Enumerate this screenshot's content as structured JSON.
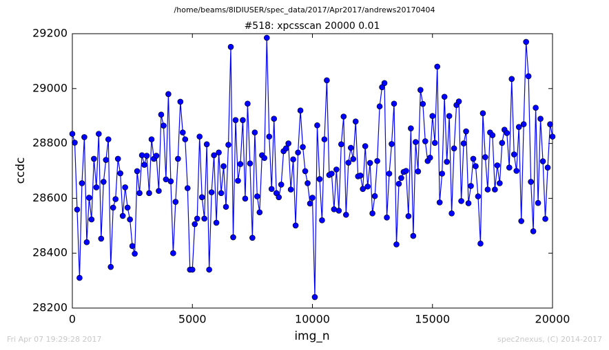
{
  "chart_data": {
    "type": "line",
    "suptitle": "/home/beams/8IDIUSER/spec_data/2017/Apr2017/andrews20170404",
    "title": "#518: xpcsscan 20000 0.01",
    "xlabel": "img_n",
    "ylabel": "ccdc",
    "footer_left": "Fri Apr 07 19:29:28 2017",
    "footer_right": "spec2nexus, (C) 2014-2017",
    "xlim": [
      0,
      20000
    ],
    "ylim": [
      28200,
      29200
    ],
    "xticks": [
      0,
      5000,
      10000,
      15000,
      20000
    ],
    "yticks": [
      28200,
      28400,
      28600,
      28800,
      29000,
      29200
    ],
    "x": [
      0,
      100,
      200,
      300,
      400,
      500,
      600,
      700,
      800,
      900,
      1000,
      1100,
      1200,
      1300,
      1400,
      1500,
      1600,
      1700,
      1800,
      1900,
      2000,
      2100,
      2200,
      2300,
      2400,
      2500,
      2600,
      2700,
      2800,
      2900,
      3000,
      3100,
      3200,
      3300,
      3400,
      3500,
      3600,
      3700,
      3800,
      3900,
      4000,
      4100,
      4200,
      4300,
      4400,
      4500,
      4600,
      4700,
      4800,
      4900,
      5000,
      5100,
      5200,
      5300,
      5400,
      5500,
      5600,
      5700,
      5800,
      5900,
      6000,
      6100,
      6200,
      6300,
      6400,
      6500,
      6600,
      6700,
      6800,
      6900,
      7000,
      7100,
      7200,
      7300,
      7400,
      7500,
      7600,
      7700,
      7800,
      7900,
      8000,
      8100,
      8200,
      8300,
      8400,
      8500,
      8600,
      8700,
      8800,
      8900,
      9000,
      9100,
      9200,
      9300,
      9400,
      9500,
      9600,
      9700,
      9800,
      9900,
      10000,
      10100,
      10200,
      10300,
      10400,
      10500,
      10600,
      10700,
      10800,
      10900,
      11000,
      11100,
      11200,
      11300,
      11400,
      11500,
      11600,
      11700,
      11800,
      11900,
      12000,
      12100,
      12200,
      12300,
      12400,
      12500,
      12600,
      12700,
      12800,
      12900,
      13000,
      13100,
      13200,
      13300,
      13400,
      13500,
      13600,
      13700,
      13800,
      13900,
      14000,
      14100,
      14200,
      14300,
      14400,
      14500,
      14600,
      14700,
      14800,
      14900,
      15000,
      15100,
      15200,
      15300,
      15400,
      15500,
      15600,
      15700,
      15800,
      15900,
      16000,
      16100,
      16200,
      16300,
      16400,
      16500,
      16600,
      16700,
      16800,
      16900,
      17000,
      17100,
      17200,
      17300,
      17400,
      17500,
      17600,
      17700,
      17800,
      17900,
      18000,
      18100,
      18200,
      18300,
      18400,
      18500,
      18600,
      18700,
      18800,
      18900,
      19000,
      19100,
      19200,
      19300,
      19400,
      19500,
      19600,
      19700,
      19800,
      19900,
      20000
    ],
    "series": [
      {
        "color": "#0000ff",
        "values": [
          28835,
          28803,
          28559,
          28310,
          28655,
          28823,
          28440,
          28602,
          28523,
          28744,
          28640,
          28835,
          28453,
          28660,
          28740,
          28815,
          28350,
          28566,
          28597,
          28744,
          28691,
          28536,
          28640,
          28566,
          28523,
          28426,
          28398,
          28699,
          28619,
          28757,
          28722,
          28755,
          28619,
          28815,
          28744,
          28755,
          28627,
          28905,
          28865,
          28669,
          28980,
          28662,
          28400,
          28587,
          28744,
          28952,
          28840,
          28815,
          28637,
          28340,
          28340,
          28506,
          28526,
          28825,
          28604,
          28526,
          28797,
          28340,
          28622,
          28757,
          28511,
          28767,
          28619,
          28717,
          28569,
          28795,
          29152,
          28458,
          28885,
          28664,
          28725,
          28885,
          28599,
          28945,
          28727,
          28456,
          28840,
          28607,
          28549,
          28757,
          28747,
          29185,
          28825,
          28634,
          28890,
          28619,
          28604,
          28650,
          28772,
          28782,
          28800,
          28632,
          28742,
          28501,
          28767,
          28920,
          28787,
          28699,
          28655,
          28581,
          28602,
          28240,
          28866,
          28670,
          28520,
          28815,
          29030,
          28685,
          28690,
          28560,
          28705,
          28555,
          28797,
          28898,
          28540,
          28730,
          28784,
          28743,
          28880,
          28680,
          28683,
          28634,
          28790,
          28643,
          28729,
          28545,
          28608,
          28736,
          28935,
          29005,
          29020,
          28530,
          28690,
          28798,
          28945,
          28432,
          28653,
          28674,
          28696,
          28700,
          28535,
          28855,
          28463,
          28805,
          28698,
          28995,
          28944,
          28808,
          28736,
          28748,
          28900,
          28802,
          29080,
          28585,
          28690,
          28970,
          28733,
          28900,
          28545,
          28782,
          28940,
          28953,
          28590,
          28800,
          28844,
          28582,
          28645,
          28744,
          28717,
          28607,
          28435,
          28910,
          28750,
          28632,
          28840,
          28830,
          28632,
          28720,
          28655,
          28802,
          28850,
          28838,
          28712,
          29035,
          28760,
          28700,
          28860,
          28517,
          28870,
          29170,
          29045,
          28660,
          28480,
          28930,
          28583,
          28890,
          28735,
          28525,
          28712,
          28870,
          28825
        ]
      }
    ]
  }
}
